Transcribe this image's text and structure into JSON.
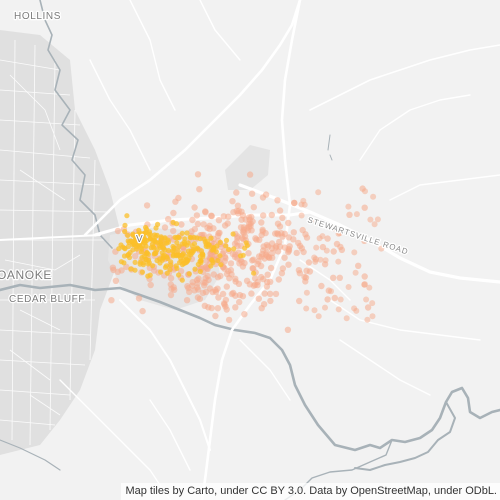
{
  "map": {
    "places": {
      "hollins": "HOLLINS",
      "roanoke": "OANOKE",
      "cedar_bluff": "CEDAR BLUFF",
      "vinton": "V"
    },
    "roads": {
      "stewartsville": "STEWARTSVILLE ROAD"
    },
    "colors": {
      "background": "#f2f2f2",
      "urban_area": "#e1e1e1",
      "water": "#a9b3b9",
      "roads": "#ffffff",
      "points_sparse": "#f6a98a",
      "points_dense": "#fbbf2a"
    }
  },
  "attribution": "Map tiles by Carto, under CC BY 3.0. Data by OpenStreetMap, under ODbL."
}
